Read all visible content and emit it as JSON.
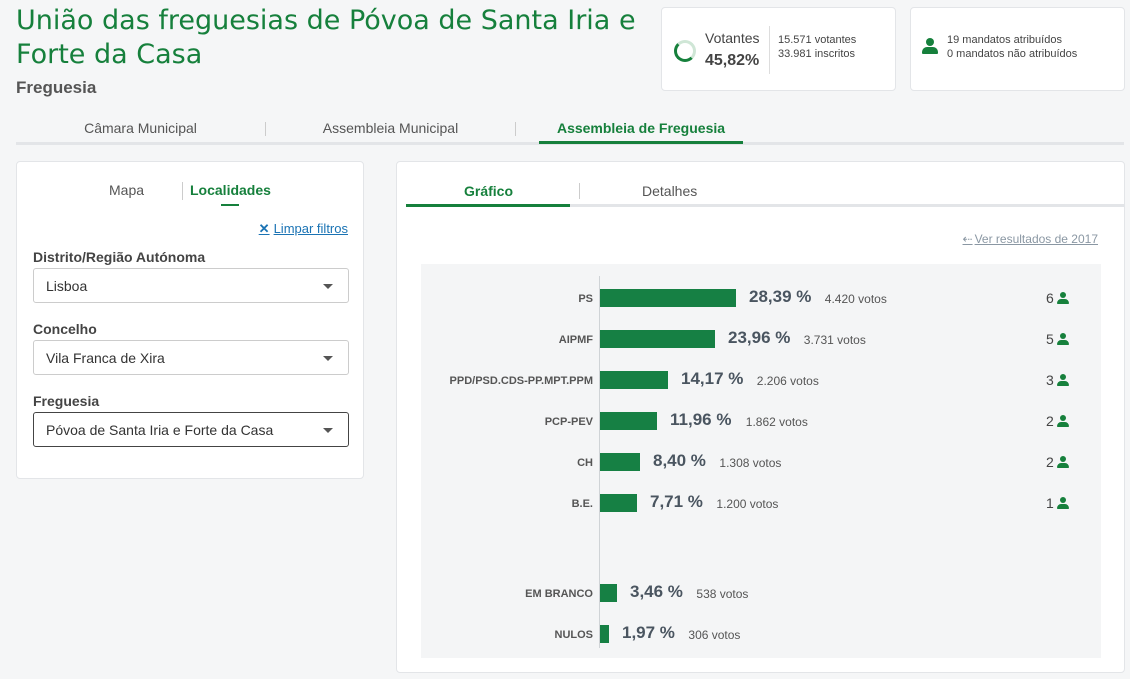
{
  "header": {
    "title": "União das freguesias de Póvoa de Santa Iria e Forte da Casa",
    "subtitle": "Freguesia"
  },
  "votantes": {
    "label": "Votantes",
    "pct": "45,82%",
    "voters": "15.571 votantes",
    "registered": "33.981 inscritos"
  },
  "mandatos": {
    "assigned": "19 mandatos atribuídos",
    "unassigned": "0 mandatos não atribuídos"
  },
  "main_tabs": [
    {
      "label": "Câmara Municipal"
    },
    {
      "label": "Assembleia Municipal"
    },
    {
      "label": "Assembleia de Freguesia"
    }
  ],
  "filters": {
    "tabs": [
      {
        "label": "Mapa"
      },
      {
        "label": "Localidades"
      }
    ],
    "clear_label": "Limpar filtros",
    "fields": [
      {
        "label": "Distrito/Região Autónoma",
        "value": "Lisboa"
      },
      {
        "label": "Concelho",
        "value": "Vila Franca de Xira"
      },
      {
        "label": "Freguesia",
        "value": "Póvoa de Santa Iria e Forte da Casa"
      }
    ]
  },
  "results": {
    "tabs": [
      {
        "label": "Gráfico"
      },
      {
        "label": "Detalhes"
      }
    ],
    "prev_link": "Ver resultados de 2017"
  },
  "chart_data": {
    "type": "bar",
    "orientation": "horizontal",
    "series": [
      {
        "party": "PS",
        "pct": 28.39,
        "pct_label": "28,39 %",
        "votes_label": "4.420 votos",
        "mandates": "6"
      },
      {
        "party": "AIPMF",
        "pct": 23.96,
        "pct_label": "23,96 %",
        "votes_label": "3.731 votos",
        "mandates": "5"
      },
      {
        "party": "PPD/PSD.CDS-PP.MPT.PPM",
        "pct": 14.17,
        "pct_label": "14,17 %",
        "votes_label": "2.206 votos",
        "mandates": "3"
      },
      {
        "party": "PCP-PEV",
        "pct": 11.96,
        "pct_label": "11,96 %",
        "votes_label": "1.862 votos",
        "mandates": "2"
      },
      {
        "party": "CH",
        "pct": 8.4,
        "pct_label": "8,40 %",
        "votes_label": "1.308 votos",
        "mandates": "2"
      },
      {
        "party": "B.E.",
        "pct": 7.71,
        "pct_label": "7,71 %",
        "votes_label": "1.200 votos",
        "mandates": "1"
      }
    ],
    "other": [
      {
        "party": "EM BRANCO",
        "pct": 3.46,
        "pct_label": "3,46 %",
        "votes_label": "538 votos"
      },
      {
        "party": "NULOS",
        "pct": 1.97,
        "pct_label": "1,97 %",
        "votes_label": "306 votos"
      }
    ],
    "colors": {
      "bar": "#168044",
      "accent": "#16803c"
    }
  }
}
